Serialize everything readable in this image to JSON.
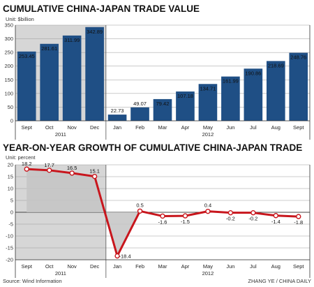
{
  "chart_data": [
    {
      "type": "bar",
      "title": "CUMULATIVE CHINA-JAPAN TRADE VALUE",
      "unit_label": "Unit: $billion",
      "categories": [
        "Sept",
        "Oct",
        "Nov",
        "Dec",
        "Jan",
        "Feb",
        "Mar",
        "Apr",
        "May",
        "Jun",
        "Jul",
        "Aug",
        "Sept"
      ],
      "values": [
        253.45,
        281.61,
        311.99,
        342.89,
        22.73,
        49.07,
        79.42,
        107.18,
        134.71,
        161.99,
        190.86,
        218.69,
        248.76
      ],
      "value_labels": [
        "253.45",
        "281.61",
        "311.99",
        "342.89",
        "22.73",
        "49.07",
        "79.42",
        "107.18",
        "134.71",
        "161.99",
        "190.86",
        "218.69",
        "248.76"
      ],
      "year_groups": [
        {
          "label": "2011",
          "start": 0,
          "end": 3
        },
        {
          "label": "2012",
          "start": 4,
          "end": 12
        }
      ],
      "yticks": [
        "0",
        "50",
        "100",
        "150",
        "200",
        "250",
        "300",
        "350"
      ],
      "ylim": [
        0,
        350
      ],
      "bar_color": "#1f4f85",
      "shade_color": "#d6d6d6",
      "shaded_categories": [
        0,
        3
      ]
    },
    {
      "type": "line",
      "title": "YEAR-ON-YEAR GROWTH OF CUMULATIVE CHINA-JAPAN TRADE",
      "unit_label": "Unit: percent",
      "categories": [
        "Sept",
        "Oct",
        "Nov",
        "Dec",
        "Jan",
        "Feb",
        "Mar",
        "Apr",
        "May",
        "Jun",
        "Jul",
        "Aug",
        "Sept"
      ],
      "values": [
        18.2,
        17.7,
        16.5,
        15.1,
        -18.4,
        0.5,
        -1.6,
        -1.5,
        0.4,
        -0.2,
        -0.2,
        -1.4,
        -1.8
      ],
      "value_labels": [
        "18.2",
        "17.7",
        "16.5",
        "15.1",
        "-18.4",
        "0.5",
        "-1.6",
        "-1.5",
        "0.4",
        "-0.2",
        "-0.2",
        "-1.4",
        "-1.8"
      ],
      "year_groups": [
        {
          "label": "2011",
          "start": 0,
          "end": 3
        },
        {
          "label": "2012",
          "start": 4,
          "end": 12
        }
      ],
      "yticks": [
        "20",
        "15",
        "10",
        "5",
        "0",
        "-5",
        "-10",
        "-15",
        "-20"
      ],
      "ylim": [
        -20,
        20
      ],
      "line_color": "#c8161d",
      "area_color": "#c4c4c4",
      "shade_color": "#d6d6d6",
      "shaded_categories": [
        0,
        3
      ]
    }
  ],
  "footer": {
    "source": "Source: Wind Information",
    "credit": "ZHANG YE / CHINA DAILY"
  }
}
